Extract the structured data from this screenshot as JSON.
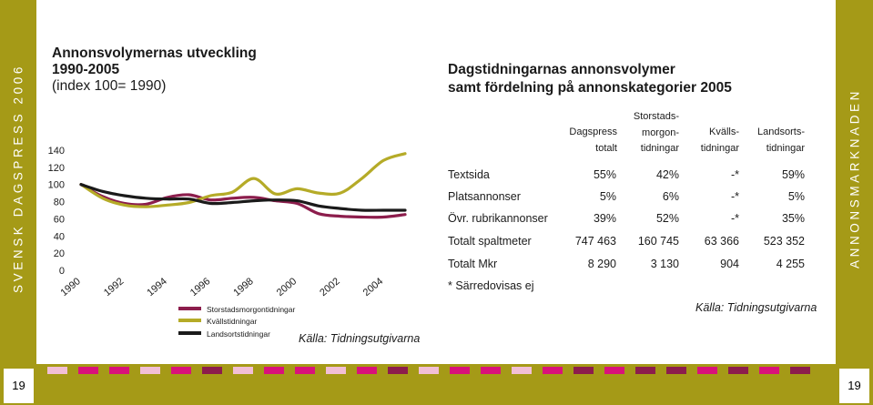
{
  "side": {
    "left_text": "SVENSK DAGSPRESS 2006",
    "right_text": "ANNONSMARKNADEN"
  },
  "page": {
    "left_number": "19",
    "right_number": "19"
  },
  "left_chart": {
    "title": "Annonsvolymernas utveckling",
    "title2": "1990-2005",
    "subtitle": "(index 100= 1990)",
    "source": "Källa: Tidningsutgivarna",
    "legend": [
      {
        "label": "Storstadsmorgontidningar",
        "color": "#8c1d4c"
      },
      {
        "label": "Kvällstidningar",
        "color": "#b5ab28"
      },
      {
        "label": "Landsortstidningar",
        "color": "#1a1a1a"
      }
    ]
  },
  "chart_data": {
    "type": "line",
    "title": "Annonsvolymernas utveckling 1990-2005",
    "subtitle": "(index 100= 1990)",
    "x": [
      1990,
      1991,
      1992,
      1993,
      1994,
      1995,
      1996,
      1997,
      1998,
      1999,
      2000,
      2001,
      2002,
      2003,
      2004,
      2005
    ],
    "xticks": [
      "1990",
      "1992",
      "1994",
      "1996",
      "1998",
      "2000",
      "2002",
      "2004"
    ],
    "yticks": [
      "0",
      "20",
      "40",
      "60",
      "80",
      "100",
      "120",
      "140"
    ],
    "ylim": [
      0,
      140
    ],
    "xlim": [
      1990,
      2005
    ],
    "grid": false,
    "series": [
      {
        "name": "Storstadsmorgontidningar",
        "color": "#8c1d4c",
        "values": [
          100,
          86,
          78,
          77,
          85,
          88,
          82,
          84,
          85,
          81,
          78,
          66,
          63,
          62,
          62,
          65
        ]
      },
      {
        "name": "Kvällstidningar",
        "color": "#b5ab28",
        "values": [
          100,
          84,
          76,
          74,
          76,
          79,
          87,
          91,
          107,
          89,
          95,
          90,
          90,
          107,
          128,
          136
        ]
      },
      {
        "name": "Landsortstidningar",
        "color": "#1a1a1a",
        "values": [
          100,
          92,
          87,
          84,
          83,
          83,
          78,
          79,
          81,
          82,
          81,
          75,
          72,
          70,
          70,
          70
        ]
      }
    ]
  },
  "table": {
    "title_line1": "Dagstidningarnas annonsvolymer",
    "title_line2": "samt fördelning på annonskategorier 2005",
    "headers": [
      {
        "lines": [
          "Dagspress",
          "totalt"
        ]
      },
      {
        "lines": [
          "Storstads-",
          "morgon-",
          "tidningar"
        ]
      },
      {
        "lines": [
          "Kvälls-",
          "tidningar"
        ]
      },
      {
        "lines": [
          "Landsorts-",
          "tidningar"
        ]
      }
    ],
    "rows": [
      {
        "label": "Textsida",
        "values": [
          "55%",
          "42%",
          "-*",
          "59%"
        ]
      },
      {
        "label": "Platsannonser",
        "values": [
          "5%",
          "6%",
          "-*",
          "5%"
        ]
      },
      {
        "label": "Övr. rubrikannonser",
        "values": [
          "39%",
          "52%",
          "-*",
          "35%"
        ]
      },
      {
        "label": "Totalt spaltmeter",
        "values": [
          "747 463",
          "160 745",
          "63 366",
          "523 352"
        ]
      },
      {
        "label": "Totalt Mkr",
        "values": [
          "8 290",
          "3 130",
          "904",
          "4 255"
        ]
      }
    ],
    "footnote": "* Särredovisas ej",
    "source": "Källa: Tidningsutgivarna"
  },
  "color_bar": [
    "#f2bfd6",
    "#d9127a",
    "#d9127a",
    "#f2bfd6",
    "#d9127a",
    "#8c1d4c",
    "#f2bfd6",
    "#d9127a",
    "#d9127a",
    "#f2bfd6",
    "#d9127a",
    "#8c1d4c",
    "#f2bfd6",
    "#d9127a",
    "#d9127a",
    "#f2bfd6",
    "#d9127a",
    "#8c1d4c",
    "#d9127a",
    "#8c1d4c",
    "#8c1d4c",
    "#d9127a",
    "#8c1d4c",
    "#d9127a",
    "#8c1d4c"
  ]
}
